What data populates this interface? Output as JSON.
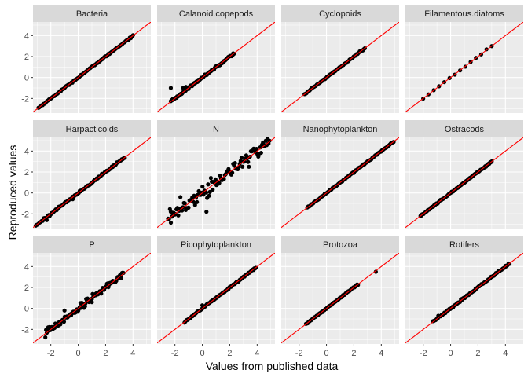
{
  "chart_data": {
    "type": "scatter",
    "xlabel": "Values from published data",
    "ylabel": "Reproduced values",
    "xlim": [
      -3.3,
      5.3
    ],
    "ylim": [
      -3.4,
      5.3
    ],
    "x_ticks": [
      -2,
      0,
      2,
      4
    ],
    "y_ticks": [
      -2,
      0,
      2,
      4
    ],
    "grid": true,
    "reference_line": {
      "slope": 1,
      "intercept": 0,
      "color": "#ff0000"
    },
    "colors": {
      "panel_bg": "#ebebeb",
      "strip_bg": "#d9d9d9",
      "grid": "#ffffff",
      "points": "#000000",
      "line": "#ff0000"
    },
    "panels": [
      {
        "name": "Bacteria",
        "range": [
          -2.9,
          4.0
        ],
        "n": 90,
        "noise": 0.03,
        "outliers": []
      },
      {
        "name": "Calanoid.copepods",
        "range": [
          -2.3,
          2.3
        ],
        "n": 90,
        "noise": 0.05,
        "outliers": [
          [
            -2.3,
            -1.0
          ],
          [
            -1.4,
            -1.0
          ],
          [
            -1.2,
            -0.9
          ]
        ]
      },
      {
        "name": "Cyclopoids",
        "range": [
          -1.6,
          2.8
        ],
        "n": 60,
        "noise": 0.03,
        "outliers": []
      },
      {
        "name": "Filamentous.diatoms",
        "range": [
          -2.0,
          3.0
        ],
        "n": 14,
        "noise": 0.03,
        "outliers": []
      },
      {
        "name": "Harpacticoids",
        "range": [
          -3.1,
          3.4
        ],
        "n": 90,
        "noise": 0.05,
        "outliers": [
          [
            -0.4,
            -0.6
          ],
          [
            -2.3,
            -2.6
          ]
        ]
      },
      {
        "name": "N",
        "range": [
          -2.5,
          4.9
        ],
        "n": 110,
        "noise": 0.35,
        "outliers": [
          [
            -1.6,
            -0.4
          ],
          [
            0.3,
            -1.8
          ],
          [
            3.6,
            4.0
          ],
          [
            3.4,
            2.5
          ],
          [
            -2.3,
            -1.8
          ],
          [
            3.0,
            3.0
          ]
        ]
      },
      {
        "name": "Nanophytoplankton",
        "range": [
          -1.4,
          4.9
        ],
        "n": 90,
        "noise": 0.03,
        "outliers": []
      },
      {
        "name": "Ostracods",
        "range": [
          -2.2,
          3.0
        ],
        "n": 90,
        "noise": 0.03,
        "outliers": []
      },
      {
        "name": "P",
        "range": [
          -2.4,
          3.3
        ],
        "n": 110,
        "noise": 0.15,
        "outliers": [
          [
            -1.0,
            -0.2
          ],
          [
            0.5,
            0.2
          ],
          [
            1.0,
            0.6
          ]
        ]
      },
      {
        "name": "Picophytoplankton",
        "range": [
          -1.3,
          3.9
        ],
        "n": 90,
        "noise": 0.03,
        "outliers": [
          [
            0.0,
            0.3
          ]
        ]
      },
      {
        "name": "Protozoa",
        "range": [
          -1.5,
          2.3
        ],
        "n": 60,
        "noise": 0.03,
        "outliers": [
          [
            3.6,
            3.5
          ]
        ]
      },
      {
        "name": "Rotifers",
        "range": [
          -1.3,
          4.3
        ],
        "n": 80,
        "noise": 0.04,
        "outliers": [
          [
            -0.9,
            -0.7
          ]
        ]
      }
    ]
  }
}
